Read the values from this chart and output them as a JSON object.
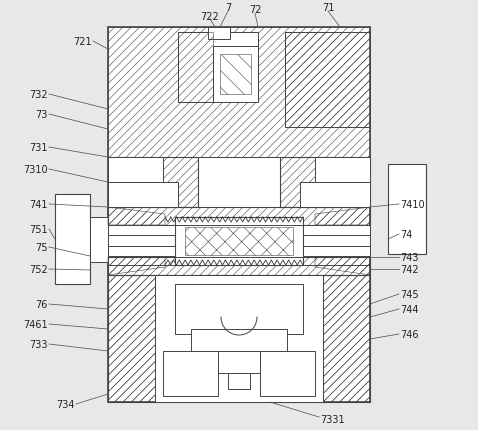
{
  "bg_color": "#e8e8e8",
  "line_color": "#444444",
  "fig_width": 4.78,
  "fig_height": 4.31,
  "dpi": 100,
  "lc": "#444444",
  "hatch_lw": 0.5,
  "main_lw": 0.8
}
